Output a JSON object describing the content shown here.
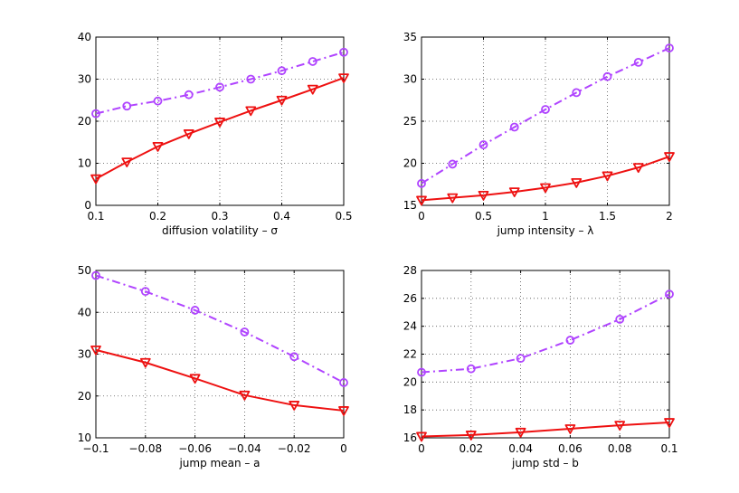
{
  "chart_data": [
    {
      "type": "line",
      "xlabel": "diffusion volatility – σ",
      "ylabel": "",
      "xlim": [
        0.1,
        0.5
      ],
      "ylim": [
        0,
        40
      ],
      "xticks": [
        0.1,
        0.2,
        0.3,
        0.4,
        0.5
      ],
      "xtick_labels": [
        "0.1",
        "0.2",
        "0.3",
        "0.4",
        "0.5"
      ],
      "yticks": [
        0,
        10,
        20,
        30,
        40
      ],
      "ytick_labels": [
        "0",
        "10",
        "20",
        "30",
        "40"
      ],
      "grid": true,
      "series": [
        {
          "name": "series-circle",
          "style": "dash-dot",
          "marker": "circle",
          "color": "#b044ff",
          "x": [
            0.1,
            0.15,
            0.2,
            0.25,
            0.3,
            0.35,
            0.4,
            0.45,
            0.5
          ],
          "y": [
            21.8,
            23.6,
            24.8,
            26.3,
            28.1,
            30.0,
            32.0,
            34.2,
            36.4
          ]
        },
        {
          "name": "series-triangle",
          "style": "solid",
          "marker": "triangle-down",
          "color": "#ee1111",
          "x": [
            0.1,
            0.15,
            0.2,
            0.25,
            0.3,
            0.35,
            0.4,
            0.45,
            0.5
          ],
          "y": [
            6.3,
            10.3,
            14.0,
            17.0,
            19.8,
            22.5,
            25.0,
            27.6,
            30.3
          ]
        }
      ]
    },
    {
      "type": "line",
      "xlabel": "jump intensity – λ",
      "ylabel": "",
      "xlim": [
        0,
        2
      ],
      "ylim": [
        15,
        35
      ],
      "xticks": [
        0,
        0.5,
        1,
        1.5,
        2
      ],
      "xtick_labels": [
        "0",
        "0.5",
        "1",
        "1.5",
        "2"
      ],
      "yticks": [
        15,
        20,
        25,
        30,
        35
      ],
      "ytick_labels": [
        "15",
        "20",
        "25",
        "30",
        "35"
      ],
      "grid": true,
      "series": [
        {
          "name": "series-circle",
          "style": "dash-dot",
          "marker": "circle",
          "color": "#b044ff",
          "x": [
            0,
            0.25,
            0.5,
            0.75,
            1,
            1.25,
            1.5,
            1.75,
            2
          ],
          "y": [
            17.6,
            19.9,
            22.2,
            24.3,
            26.4,
            28.4,
            30.3,
            32.0,
            33.7
          ]
        },
        {
          "name": "series-triangle",
          "style": "solid",
          "marker": "triangle-down",
          "color": "#ee1111",
          "x": [
            0,
            0.25,
            0.5,
            0.75,
            1,
            1.25,
            1.5,
            1.75,
            2
          ],
          "y": [
            15.6,
            15.9,
            16.2,
            16.6,
            17.1,
            17.7,
            18.5,
            19.5,
            20.8
          ]
        }
      ]
    },
    {
      "type": "line",
      "xlabel": "jump mean – a",
      "ylabel": "",
      "xlim": [
        -0.1,
        0
      ],
      "ylim": [
        10,
        50
      ],
      "xticks": [
        -0.1,
        -0.08,
        -0.06,
        -0.04,
        -0.02,
        0
      ],
      "xtick_labels": [
        "−0.1",
        "−0.08",
        "−0.06",
        "−0.04",
        "−0.02",
        "0"
      ],
      "yticks": [
        10,
        20,
        30,
        40,
        50
      ],
      "ytick_labels": [
        "10",
        "20",
        "30",
        "40",
        "50"
      ],
      "grid": true,
      "series": [
        {
          "name": "series-circle",
          "style": "dash-dot",
          "marker": "circle",
          "color": "#b044ff",
          "x": [
            -0.1,
            -0.08,
            -0.06,
            -0.04,
            -0.02,
            0
          ],
          "y": [
            48.8,
            45.0,
            40.5,
            35.3,
            29.4,
            23.2
          ]
        },
        {
          "name": "series-triangle",
          "style": "solid",
          "marker": "triangle-down",
          "color": "#ee1111",
          "x": [
            -0.1,
            -0.08,
            -0.06,
            -0.04,
            -0.02,
            0
          ],
          "y": [
            31.0,
            28.0,
            24.2,
            20.2,
            17.8,
            16.5
          ]
        }
      ]
    },
    {
      "type": "line",
      "xlabel": "jump std – b",
      "ylabel": "",
      "xlim": [
        0,
        0.1
      ],
      "ylim": [
        16,
        28
      ],
      "xticks": [
        0,
        0.02,
        0.04,
        0.06,
        0.08,
        0.1
      ],
      "xtick_labels": [
        "0",
        "0.02",
        "0.04",
        "0.06",
        "0.08",
        "0.1"
      ],
      "yticks": [
        16,
        18,
        20,
        22,
        24,
        26,
        28
      ],
      "ytick_labels": [
        "16",
        "18",
        "20",
        "22",
        "24",
        "26",
        "28"
      ],
      "grid": true,
      "series": [
        {
          "name": "series-circle",
          "style": "dash-dot",
          "marker": "circle",
          "color": "#b044ff",
          "x": [
            0,
            0.02,
            0.04,
            0.06,
            0.08,
            0.1
          ],
          "y": [
            20.7,
            20.95,
            21.7,
            23.0,
            24.5,
            26.3
          ]
        },
        {
          "name": "series-triangle",
          "style": "solid",
          "marker": "triangle-down",
          "color": "#ee1111",
          "x": [
            0,
            0.02,
            0.04,
            0.06,
            0.08,
            0.1
          ],
          "y": [
            16.1,
            16.2,
            16.4,
            16.65,
            16.9,
            17.1
          ]
        }
      ]
    }
  ]
}
